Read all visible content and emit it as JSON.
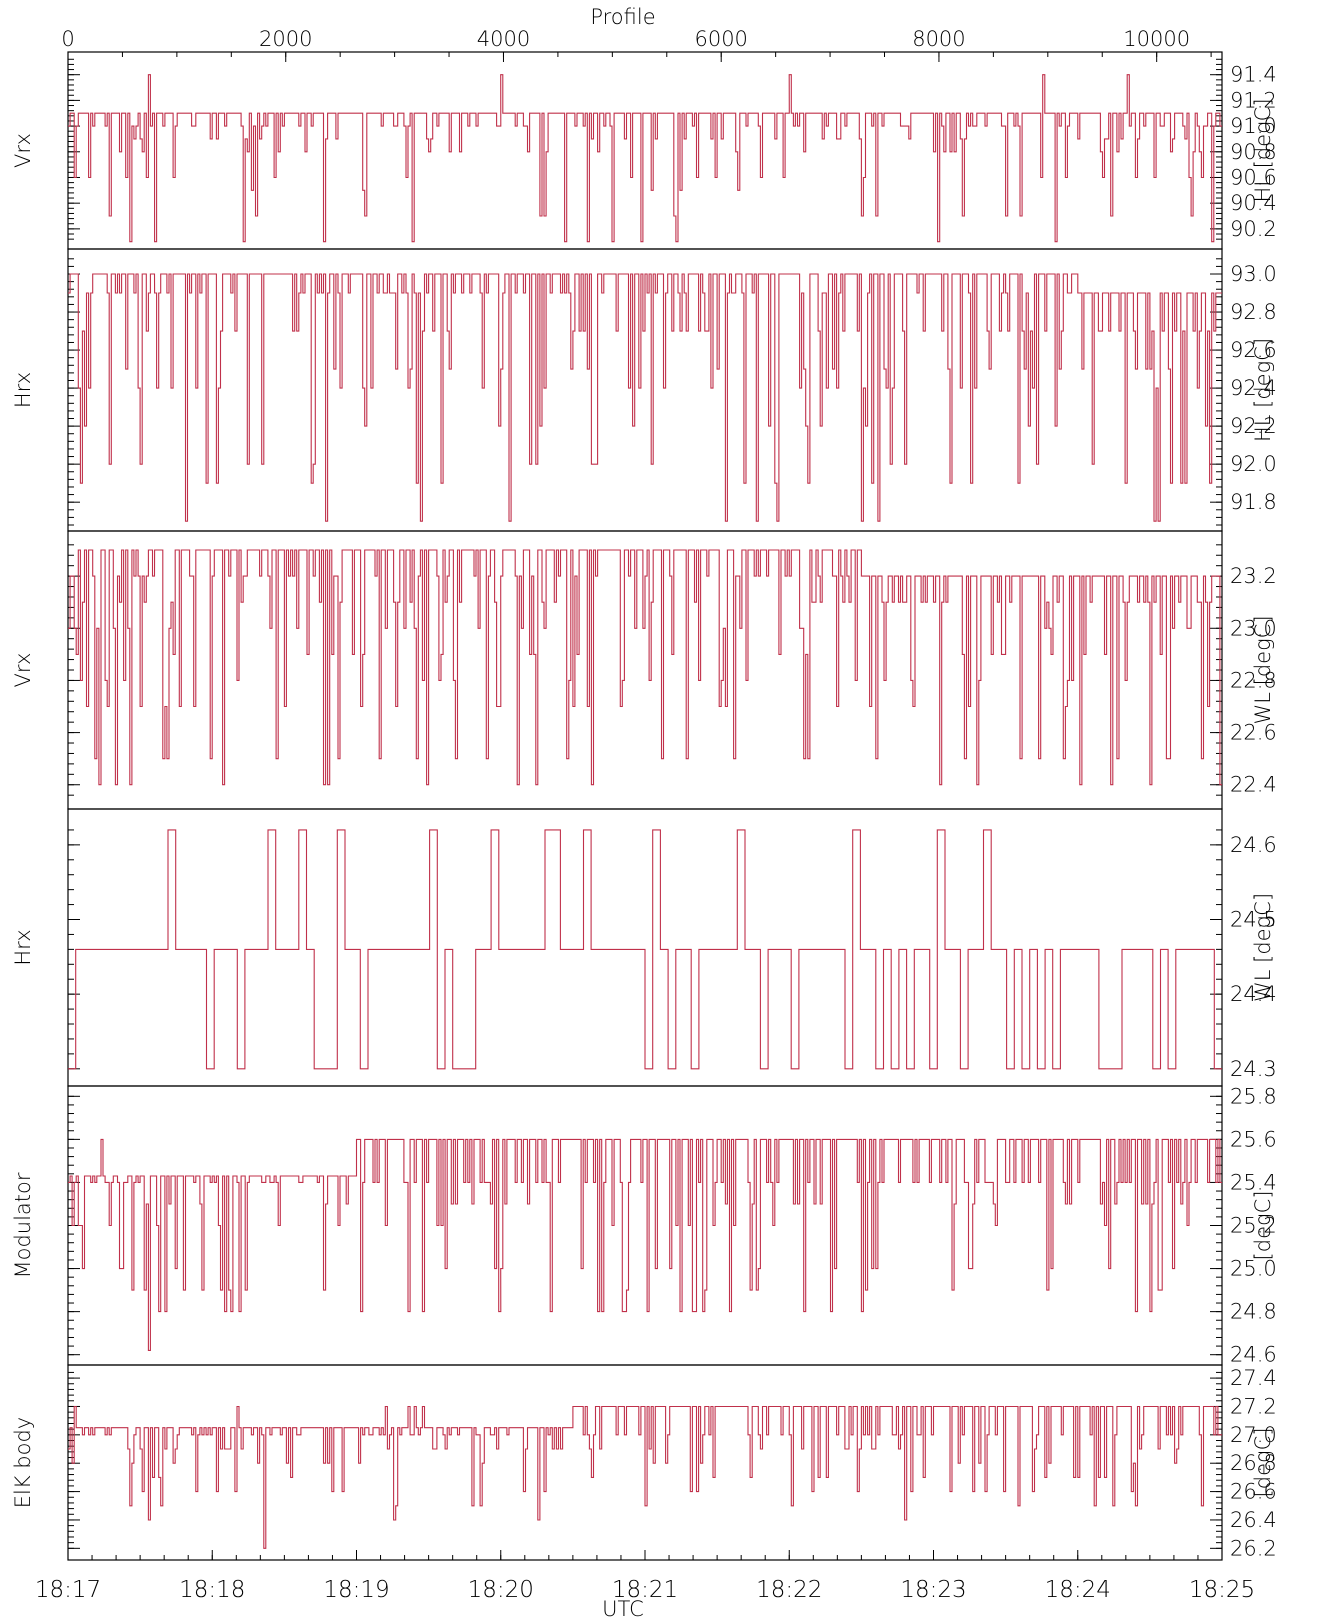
{
  "chart_data": {
    "type": "line",
    "line_color": "#c0304a",
    "background": "#ffffff",
    "top_axis": {
      "label": "Profile",
      "ticks": [
        0,
        2000,
        4000,
        6000,
        8000,
        10000
      ],
      "range": [
        0,
        10600
      ]
    },
    "bottom_axis": {
      "label": "UTC",
      "ticks": [
        "18:17",
        "18:18",
        "18:19",
        "18:20",
        "18:21",
        "18:22",
        "18:23",
        "18:24",
        "18:25"
      ],
      "range_minutes": [
        0,
        8
      ]
    },
    "panels": [
      {
        "left_label": "Vrx",
        "right_label": "HL  [degC]",
        "yticks": [
          "91.4",
          "91.2",
          "91.0",
          "90.8",
          "90.6",
          "90.4",
          "90.2"
        ],
        "ylim": [
          90.09,
          91.53
        ],
        "base": 91.1,
        "highs": [
          91.4
        ],
        "lows": [
          91.0,
          90.9,
          90.8,
          90.6,
          90.5,
          90.3,
          90.1
        ],
        "spikes": [
          [
            5.0,
            91.4
          ],
          [
            10.45,
            91.4
          ],
          [
            8.25,
            90.1
          ],
          [
            1.3,
            90.3
          ],
          [
            3.3,
            90.3
          ],
          [
            6.2,
            90.3
          ],
          [
            9.5,
            90.3
          ]
        ],
        "n": 560,
        "pdip": 0.33,
        "seed": 11
      },
      {
        "left_label": "Hrx",
        "right_label": "HL  [degC]",
        "yticks": [
          "93.0",
          "92.8",
          "92.6",
          "92.4",
          "92.2",
          "92.0",
          "91.8"
        ],
        "ylim": [
          91.68,
          93.1
        ],
        "base": 93.0,
        "highs": [],
        "lows": [
          92.9,
          92.7,
          92.5,
          92.4,
          92.2,
          92.0,
          91.9,
          91.7
        ],
        "trend": [
          [
            0,
            93.0
          ],
          [
            6.9,
            93.0
          ],
          [
            7.0,
            92.9
          ],
          [
            8.2,
            92.7
          ],
          [
            9.5,
            92.7
          ],
          [
            9.8,
            92.5
          ],
          [
            10.8,
            92.5
          ]
        ],
        "spikes": [
          [
            0.5,
            92.0
          ],
          [
            1.7,
            92.0
          ],
          [
            5.8,
            92.0
          ],
          [
            8.0,
            91.9
          ],
          [
            9.0,
            91.7
          ],
          [
            10.1,
            91.9
          ]
        ],
        "n": 560,
        "pdip": 0.36,
        "seed": 23
      },
      {
        "left_label": "Vrx",
        "right_label": "WL  [degC]",
        "yticks": [
          "23.2",
          "23.0",
          "22.8",
          "22.6",
          "22.4"
        ],
        "ylim": [
          22.33,
          23.35
        ],
        "base": 23.3,
        "highs": [],
        "lows": [
          23.2,
          23.1,
          23.0,
          22.9,
          22.8,
          22.7,
          22.5,
          22.4
        ],
        "trend": [
          [
            0,
            23.3
          ],
          [
            5.4,
            23.3
          ],
          [
            5.5,
            23.2
          ],
          [
            7.7,
            23.2
          ],
          [
            8.3,
            23.1
          ],
          [
            8.5,
            23.0
          ],
          [
            10.8,
            23.0
          ]
        ],
        "spikes": [
          [
            5.1,
            22.5
          ],
          [
            5.6,
            22.5
          ],
          [
            7.5,
            22.4
          ],
          [
            8.3,
            22.4
          ],
          [
            10.0,
            22.4
          ],
          [
            0.5,
            22.7
          ],
          [
            1.5,
            22.7
          ]
        ],
        "n": 560,
        "pdip": 0.38,
        "seed": 37
      },
      {
        "left_label": "Hrx",
        "right_label": "WL  [degC]",
        "yticks": [
          "24.6",
          "24.5",
          "24.4",
          "24.3"
        ],
        "ylim": [
          24.285,
          24.64
        ],
        "base": 24.46,
        "highs": [
          24.62
        ],
        "lows": [
          24.3
        ],
        "spikes": [
          [
            0.7,
            24.62
          ],
          [
            1.6,
            24.62
          ],
          [
            1.85,
            24.62
          ],
          [
            2.5,
            24.62
          ],
          [
            3.3,
            24.62
          ],
          [
            3.55,
            24.62
          ],
          [
            4.05,
            24.62
          ],
          [
            5.45,
            24.62
          ],
          [
            6.0,
            24.62
          ],
          [
            6.35,
            24.62
          ]
        ],
        "trend": [
          [
            0,
            24.46
          ],
          [
            9.2,
            24.46
          ]
        ],
        "tail_burst": {
          "start": 9.2,
          "high": 24.62,
          "low": 24.46
        },
        "n": 150,
        "pdip": 0.28,
        "seed": 51
      },
      {
        "left_label": "Modulator",
        "right_label": "[degC]",
        "yticks": [
          "25.8",
          "25.6",
          "25.4",
          "25.2",
          "25.0",
          "24.8",
          "24.6"
        ],
        "ylim": [
          24.58,
          25.82
        ],
        "base": 25.43,
        "highs": [
          25.6
        ],
        "lows": [
          25.4,
          25.3,
          25.2,
          25.0,
          24.9,
          24.8
        ],
        "trend": [
          [
            0,
            25.43
          ],
          [
            1.9,
            25.43
          ],
          [
            2.0,
            25.6
          ],
          [
            10.2,
            25.6
          ],
          [
            10.3,
            25.75
          ],
          [
            10.8,
            25.75
          ]
        ],
        "spikes": [
          [
            0.55,
            24.62
          ],
          [
            5.1,
            24.8
          ],
          [
            5.5,
            24.8
          ],
          [
            7.4,
            24.8
          ],
          [
            8.1,
            24.8
          ],
          [
            9.2,
            24.8
          ],
          [
            2.45,
            24.8
          ]
        ],
        "n": 560,
        "pdip": 0.33,
        "seed": 67
      },
      {
        "left_label": "ElK  body",
        "right_label": "[degC]",
        "yticks": [
          "27.4",
          "27.2",
          "27.0",
          "26.8",
          "26.6",
          "26.4",
          "26.2"
        ],
        "ylim": [
          26.16,
          27.45
        ],
        "base": 27.05,
        "highs": [
          27.2
        ],
        "lows": [
          27.0,
          26.9,
          26.8,
          26.7,
          26.6,
          26.5
        ],
        "trend": [
          [
            0,
            27.05
          ],
          [
            3.45,
            27.05
          ],
          [
            3.5,
            27.2
          ],
          [
            10.2,
            27.2
          ],
          [
            10.3,
            27.38
          ],
          [
            10.8,
            27.38
          ]
        ],
        "spikes": [
          [
            1.35,
            26.2
          ],
          [
            0.55,
            26.4
          ],
          [
            2.25,
            26.4
          ],
          [
            3.25,
            26.4
          ],
          [
            5.8,
            26.4
          ]
        ],
        "n": 560,
        "pdip": 0.32,
        "seed": 79
      }
    ]
  }
}
